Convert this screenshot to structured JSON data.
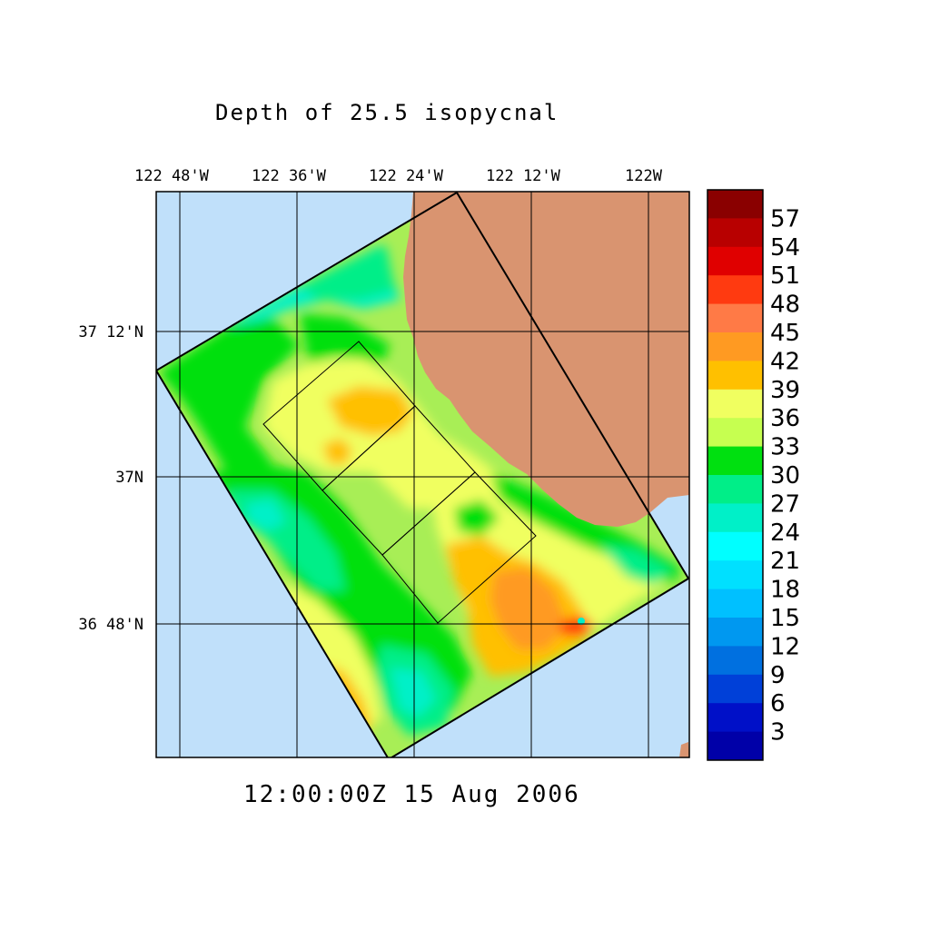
{
  "title": "Depth of 25.5 isopycnal",
  "timestamp": "12:00:00Z  15 Aug 2006",
  "longitude_labels": [
    "122 48'W",
    "122 36'W",
    "122 24'W",
    "122 12'W",
    "122W"
  ],
  "latitude_labels": [
    "37 12'N",
    "37N",
    "36 48'N"
  ],
  "colorbar": {
    "tick_labels": [
      "57",
      "54",
      "51",
      "48",
      "45",
      "42",
      "39",
      "36",
      "33",
      "30",
      "27",
      "24",
      "21",
      "18",
      "15",
      "12",
      "9",
      "6",
      "3"
    ],
    "colors_top_to_bottom": [
      "#8a0000",
      "#b80000",
      "#e00000",
      "#ff3a10",
      "#ff7a46",
      "#ff9a22",
      "#ffc000",
      "#f0ff60",
      "#c6ff50",
      "#00e010",
      "#00ee88",
      "#00f0c8",
      "#00ffff",
      "#00e0ff",
      "#00c0ff",
      "#0098f0",
      "#0070e0",
      "#0040d8",
      "#0010c8",
      "#0000a8"
    ]
  },
  "colors": {
    "ocean": "#c0e0fa",
    "land": "#d99470",
    "domain_base": "#a8ee56"
  }
}
